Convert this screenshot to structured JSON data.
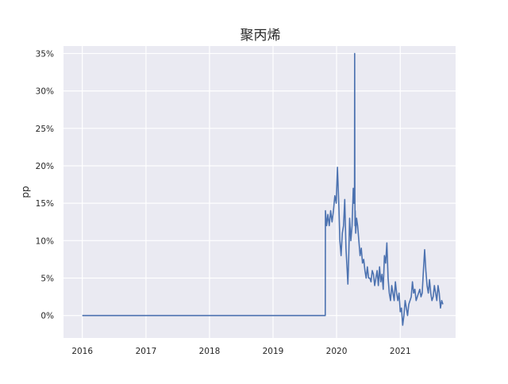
{
  "chart_data": {
    "type": "line",
    "title": "聚丙烯",
    "xlabel": "",
    "ylabel": "pp",
    "x_tick_labels": [
      "2016",
      "2017",
      "2018",
      "2019",
      "2020",
      "2021"
    ],
    "y_tick_labels": [
      "0%",
      "5%",
      "10%",
      "15%",
      "20%",
      "25%",
      "30%",
      "35%"
    ],
    "y_ticks": [
      0,
      5,
      10,
      15,
      20,
      25,
      30,
      35
    ],
    "ylim": [
      -3,
      36
    ],
    "xlim": [
      "2015-09-15",
      "2021-11-15"
    ],
    "grid": true,
    "legend": "none",
    "colors": {
      "background": "#eaeaf2",
      "grid": "#ffffff",
      "line": "#4c72b0"
    },
    "series": [
      {
        "x": [
          "2016-01-01",
          "2019-10-28",
          "2019-10-29",
          "2019-11-05",
          "2019-11-12",
          "2019-11-20",
          "2019-11-28",
          "2019-12-06",
          "2019-12-14",
          "2019-12-22",
          "2019-12-30",
          "2020-01-06",
          "2020-01-09",
          "2020-01-12",
          "2020-01-15",
          "2020-01-20",
          "2020-01-27",
          "2020-02-03",
          "2020-02-10",
          "2020-02-17",
          "2020-02-24",
          "2020-03-02",
          "2020-03-06",
          "2020-03-10",
          "2020-03-16",
          "2020-03-23",
          "2020-03-30",
          "2020-04-06",
          "2020-04-10",
          "2020-04-13",
          "2020-04-14",
          "2020-04-15",
          "2020-04-16",
          "2020-04-17",
          "2020-04-20",
          "2020-04-25",
          "2020-05-01",
          "2020-05-08",
          "2020-05-15",
          "2020-05-22",
          "2020-05-29",
          "2020-06-05",
          "2020-06-12",
          "2020-06-19",
          "2020-06-26",
          "2020-07-03",
          "2020-07-10",
          "2020-07-17",
          "2020-07-24",
          "2020-07-31",
          "2020-08-07",
          "2020-08-14",
          "2020-08-21",
          "2020-08-28",
          "2020-09-04",
          "2020-09-11",
          "2020-09-18",
          "2020-09-25",
          "2020-10-02",
          "2020-10-09",
          "2020-10-16",
          "2020-10-23",
          "2020-10-30",
          "2020-11-06",
          "2020-11-13",
          "2020-11-20",
          "2020-11-27",
          "2020-12-04",
          "2020-12-11",
          "2020-12-18",
          "2020-12-25",
          "2021-01-01",
          "2021-01-08",
          "2021-01-15",
          "2021-01-22",
          "2021-01-29",
          "2021-02-05",
          "2021-02-12",
          "2021-02-19",
          "2021-02-26",
          "2021-03-05",
          "2021-03-12",
          "2021-03-19",
          "2021-03-26",
          "2021-04-02",
          "2021-04-09",
          "2021-04-16",
          "2021-04-23",
          "2021-04-30",
          "2021-05-07",
          "2021-05-14",
          "2021-05-21",
          "2021-05-28",
          "2021-06-04",
          "2021-06-11",
          "2021-06-18",
          "2021-06-25",
          "2021-07-02",
          "2021-07-09",
          "2021-07-16",
          "2021-07-23",
          "2021-07-30",
          "2021-08-06",
          "2021-08-13",
          "2021-08-20",
          "2021-08-27",
          "2021-09-03"
        ],
        "values": [
          0,
          0,
          14,
          12,
          13.5,
          12,
          14,
          12.5,
          14,
          16,
          15,
          19.8,
          18,
          16,
          14,
          10,
          8,
          11,
          12,
          15.5,
          9,
          6,
          4.2,
          7,
          13,
          10,
          12,
          17,
          15,
          16,
          35,
          18,
          12,
          14,
          11,
          13,
          12,
          10,
          8,
          9,
          7,
          7.5,
          6,
          5,
          6.5,
          5,
          5,
          4.5,
          6,
          5.5,
          4,
          5,
          6,
          4,
          6.5,
          4.5,
          5.5,
          3.5,
          8,
          7,
          9.7,
          5,
          3,
          2,
          4,
          3,
          2,
          4.5,
          3,
          2,
          3,
          0.5,
          1,
          -1.3,
          0,
          2,
          1,
          0,
          1.5,
          2,
          2.5,
          4.5,
          3,
          3.5,
          2,
          2.5,
          3,
          3.5,
          2.5,
          3,
          6,
          8.8,
          6,
          4,
          3,
          4.8,
          3,
          2,
          2.5,
          4,
          3,
          2,
          4,
          3,
          1,
          2,
          1.5
        ]
      }
    ]
  }
}
